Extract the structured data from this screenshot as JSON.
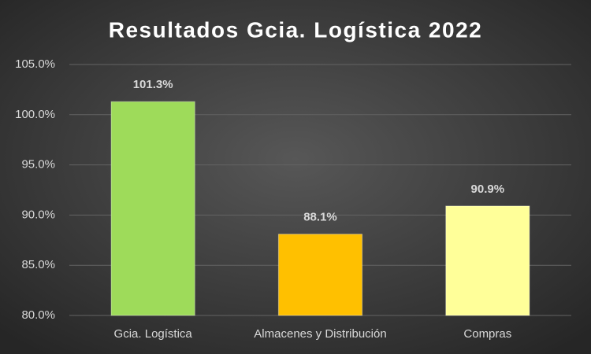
{
  "chart_data": {
    "type": "bar",
    "title": "Resultados Gcia. Logística 2022",
    "categories": [
      "Gcia. Logística",
      "Almacenes y Distribución",
      "Compras"
    ],
    "values": [
      101.3,
      88.1,
      90.9
    ],
    "value_labels": [
      "101.3%",
      "88.1%",
      "90.9%"
    ],
    "colors": [
      "#9edb5a",
      "#ffc000",
      "#ffff99"
    ],
    "ylim": [
      80,
      105
    ],
    "yticks": [
      {
        "value": 80,
        "label": "80.0%"
      },
      {
        "value": 85,
        "label": "85.0%"
      },
      {
        "value": 90,
        "label": "90.0%"
      },
      {
        "value": 95,
        "label": "95.0%"
      },
      {
        "value": 100,
        "label": "100.0%"
      },
      {
        "value": 105,
        "label": "105.0%"
      }
    ],
    "grid": true
  }
}
